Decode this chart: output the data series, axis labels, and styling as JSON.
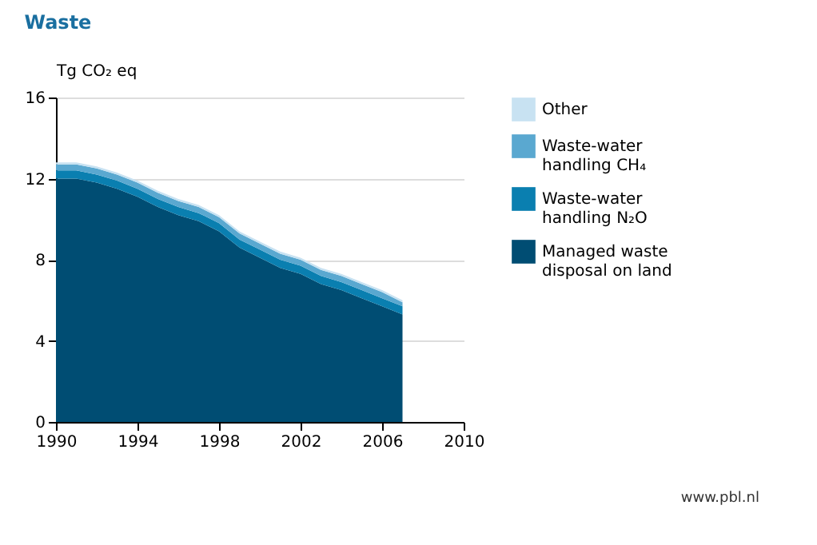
{
  "chart_data": {
    "type": "area",
    "title": "Waste",
    "ylabel": "Tg CO₂ eq",
    "stacked": true,
    "x": [
      1990,
      1991,
      1992,
      1993,
      1994,
      1995,
      1996,
      1997,
      1998,
      1999,
      2000,
      2001,
      2002,
      2003,
      2004,
      2005,
      2006,
      2007
    ],
    "series": [
      {
        "name": "Managed waste disposal on land",
        "color": "#004d73",
        "values": [
          12.0,
          12.0,
          11.8,
          11.5,
          11.1,
          10.6,
          10.2,
          9.9,
          9.4,
          8.6,
          8.1,
          7.6,
          7.3,
          6.8,
          6.5,
          6.1,
          5.7,
          5.3
        ]
      },
      {
        "name": "Waste-water handling N₂O",
        "color": "#0a7fb0",
        "values": [
          0.4,
          0.4,
          0.4,
          0.4,
          0.4,
          0.4,
          0.4,
          0.4,
          0.4,
          0.4,
          0.4,
          0.4,
          0.4,
          0.4,
          0.4,
          0.4,
          0.4,
          0.4
        ]
      },
      {
        "name": "Waste-water handling CH₄",
        "color": "#5aa8d0",
        "values": [
          0.3,
          0.3,
          0.3,
          0.3,
          0.3,
          0.3,
          0.3,
          0.3,
          0.3,
          0.3,
          0.3,
          0.3,
          0.3,
          0.3,
          0.3,
          0.3,
          0.3,
          0.2
        ]
      },
      {
        "name": "Other",
        "color": "#c8e2f2",
        "values": [
          0.1,
          0.1,
          0.1,
          0.1,
          0.1,
          0.1,
          0.1,
          0.1,
          0.1,
          0.1,
          0.1,
          0.1,
          0.1,
          0.1,
          0.1,
          0.1,
          0.1,
          0.1
        ]
      }
    ],
    "xlim": [
      1990,
      2010
    ],
    "xticks": [
      1990,
      1994,
      1998,
      2002,
      2006,
      2010
    ],
    "ylim": [
      0,
      16
    ],
    "yticks": [
      0,
      4,
      8,
      12,
      16
    ],
    "grid": "y",
    "legend": "right",
    "annotations": [
      "www.pbl.nl"
    ]
  }
}
